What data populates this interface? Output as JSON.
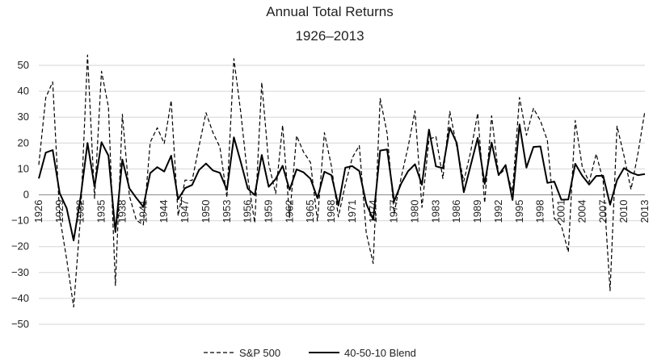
{
  "chart_data": {
    "type": "line",
    "title": "Annual Total Returns",
    "subtitle": "1926–2013",
    "xlabel": "",
    "ylabel": "",
    "ylim": [
      -50,
      50
    ],
    "y_ticks": [
      50,
      40,
      30,
      20,
      10,
      0,
      -10,
      -20,
      -30,
      -40,
      -50
    ],
    "x": [
      1926,
      1927,
      1928,
      1929,
      1930,
      1931,
      1932,
      1933,
      1934,
      1935,
      1936,
      1937,
      1938,
      1939,
      1940,
      1941,
      1942,
      1943,
      1944,
      1945,
      1946,
      1947,
      1948,
      1949,
      1950,
      1951,
      1952,
      1953,
      1954,
      1955,
      1956,
      1957,
      1958,
      1959,
      1960,
      1961,
      1962,
      1963,
      1964,
      1965,
      1966,
      1967,
      1968,
      1969,
      1970,
      1971,
      1972,
      1973,
      1974,
      1975,
      1976,
      1977,
      1978,
      1979,
      1980,
      1981,
      1982,
      1983,
      1984,
      1985,
      1986,
      1987,
      1988,
      1989,
      1990,
      1991,
      1992,
      1993,
      1994,
      1995,
      1996,
      1997,
      1998,
      1999,
      2000,
      2001,
      2002,
      2003,
      2004,
      2005,
      2006,
      2007,
      2008,
      2009,
      2010,
      2011,
      2012,
      2013
    ],
    "x_tick_labels": [
      "1926",
      "1929",
      "1932",
      "1935",
      "1938",
      "1941",
      "1944",
      "1947",
      "1950",
      "1953",
      "1956",
      "1959",
      "1962",
      "1965",
      "1968",
      "1971",
      "1974",
      "1977",
      "1980",
      "1983",
      "1986",
      "1989",
      "1992",
      "1995",
      "1998",
      "2001",
      "2004",
      "2007",
      "2010",
      "2013"
    ],
    "grid": true,
    "legend_position": "bottom",
    "series": [
      {
        "name": "S&P 500",
        "style": "dashed",
        "color": "#000000",
        "values": [
          11.6,
          37.5,
          43.6,
          -8.4,
          -24.9,
          -43.3,
          -8.2,
          54.0,
          -1.4,
          47.7,
          33.9,
          -35.0,
          31.1,
          -0.4,
          -9.8,
          -11.6,
          20.3,
          25.9,
          19.8,
          36.4,
          -8.1,
          5.7,
          5.5,
          18.8,
          31.7,
          24.0,
          18.4,
          -1.0,
          52.6,
          31.6,
          6.6,
          -10.8,
          43.4,
          12.0,
          0.5,
          26.9,
          -8.7,
          22.8,
          16.5,
          12.5,
          -10.1,
          24.0,
          11.1,
          -8.5,
          4.0,
          14.3,
          19.0,
          -14.7,
          -26.5,
          37.2,
          23.8,
          -7.2,
          6.6,
          18.4,
          32.4,
          -4.9,
          21.4,
          22.5,
          6.3,
          32.2,
          18.5,
          5.2,
          16.8,
          31.5,
          -3.1,
          30.5,
          7.6,
          10.1,
          1.3,
          37.6,
          23.0,
          33.4,
          28.6,
          21.0,
          -9.1,
          -11.9,
          -22.1,
          28.7,
          10.9,
          4.9,
          15.8,
          5.5,
          -37.0,
          26.5,
          15.1,
          2.1,
          16.0,
          32.4
        ]
      },
      {
        "name": "40-50-10 Blend",
        "style": "solid",
        "color": "#000000",
        "values": [
          6.3,
          16.3,
          17.3,
          0.6,
          -5.2,
          -17.6,
          -1.0,
          20.0,
          3.1,
          20.3,
          15.1,
          -14.4,
          13.6,
          2.5,
          -1.2,
          -4.6,
          8.4,
          10.7,
          9.0,
          15.1,
          -1.7,
          2.6,
          3.8,
          9.6,
          12.1,
          9.4,
          8.5,
          1.9,
          22.2,
          12.6,
          2.4,
          -0.1,
          15.4,
          3.1,
          6.1,
          11.2,
          1.9,
          9.8,
          8.7,
          6.2,
          -1.3,
          8.9,
          7.6,
          -4.1,
          10.5,
          11.1,
          9.2,
          -3.4,
          -9.6,
          17.1,
          17.5,
          -2.5,
          4.3,
          9.1,
          11.8,
          3.9,
          25.2,
          11.0,
          10.3,
          25.9,
          20.0,
          1.0,
          11.5,
          22.0,
          4.2,
          20.2,
          7.6,
          11.5,
          -2.0,
          27.2,
          10.5,
          18.5,
          18.7,
          4.6,
          5.1,
          -1.9,
          -1.8,
          12.0,
          7.4,
          4.0,
          7.3,
          7.4,
          -3.8,
          5.7,
          10.3,
          8.6,
          7.6,
          8.0
        ]
      }
    ]
  }
}
